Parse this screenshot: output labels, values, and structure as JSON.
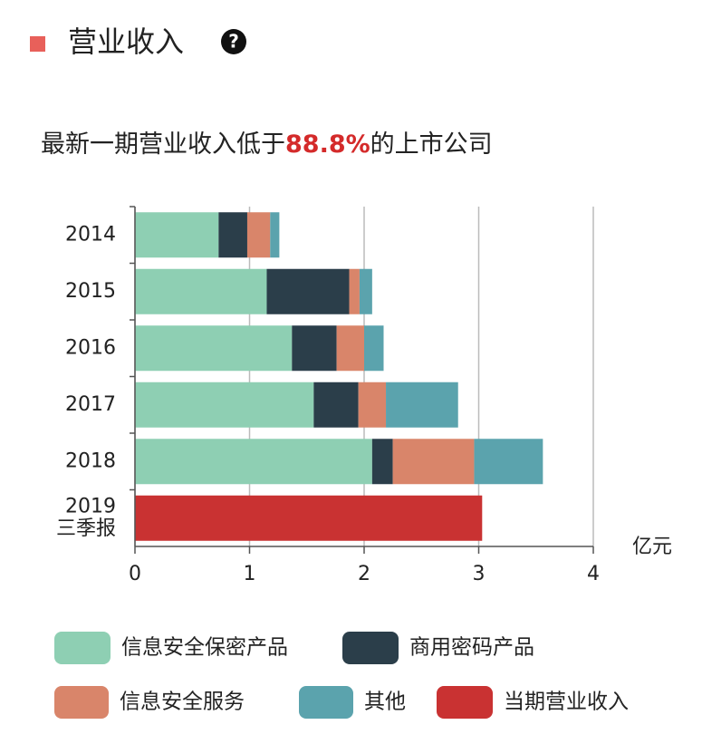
{
  "header": {
    "title": "营业收入",
    "subtitle_before": "最新一期营业收入低于",
    "subtitle_highlight": "88.8%",
    "subtitle_after": "的上市公司"
  },
  "chart_data": {
    "type": "stacked-bar-horizontal",
    "categories": [
      "2014",
      "2015",
      "2016",
      "2017",
      "2018",
      "2019\n三季报"
    ],
    "series": [
      {
        "name": "信息安全保密产品",
        "color": "#8ecfb3",
        "values": [
          0.73,
          1.15,
          1.37,
          1.56,
          2.07,
          null
        ]
      },
      {
        "name": "商用密码产品",
        "color": "#2b3e4a",
        "values": [
          0.25,
          0.72,
          0.39,
          0.39,
          0.18,
          null
        ]
      },
      {
        "name": "信息安全服务",
        "color": "#d9856a",
        "values": [
          0.2,
          0.09,
          0.24,
          0.24,
          0.71,
          null
        ]
      },
      {
        "name": "其他",
        "color": "#5ba3ad",
        "values": [
          0.08,
          0.11,
          0.17,
          0.63,
          0.6,
          null
        ]
      },
      {
        "name": "当期营业收入",
        "color": "#c93232",
        "values": [
          null,
          null,
          null,
          null,
          null,
          3.03
        ]
      }
    ],
    "xlim": [
      0,
      4
    ],
    "xticks": [
      0,
      1,
      2,
      3,
      4
    ],
    "x_unit": "亿元",
    "grid": true
  }
}
